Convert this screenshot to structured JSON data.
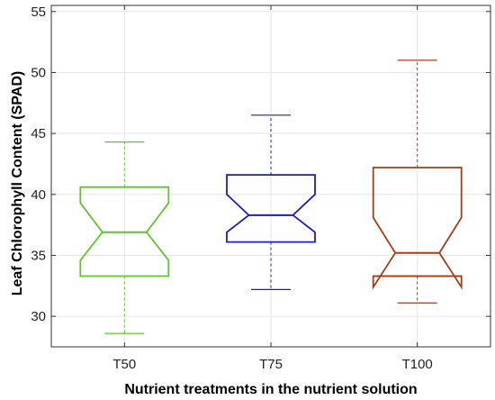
{
  "chart_data": {
    "type": "box",
    "title": "",
    "xlabel": "Nutrient treatments in the nutrient solution",
    "ylabel": "Leaf Chlorophyll Content (SPAD)",
    "ylim": [
      27.5,
      55.5
    ],
    "yticks": [
      30,
      35,
      40,
      45,
      50,
      55
    ],
    "grid": true,
    "categories": [
      "T50",
      "T75",
      "T100"
    ],
    "boxes": [
      {
        "category": "T50",
        "whisker_low": 28.6,
        "q1": 33.3,
        "median": 36.9,
        "q3": 40.6,
        "whisker_high": 44.3,
        "notch_low": 34.6,
        "notch_high": 39.3,
        "color": "#5ec62b"
      },
      {
        "category": "T75",
        "whisker_low": 32.2,
        "q1": 36.1,
        "median": 38.3,
        "q3": 41.6,
        "whisker_high": 46.5,
        "notch_low": 36.9,
        "notch_high": 40.0,
        "color": "#1f1fb4"
      },
      {
        "category": "T100",
        "whisker_low": 31.1,
        "q1": 33.3,
        "median": 35.2,
        "q3": 42.2,
        "whisker_high": 51.0,
        "notch_low": 32.4,
        "notch_high": 38.1,
        "color": "#a0401a"
      }
    ],
    "extra_lines": [
      {
        "category": "T100",
        "value": 33.3,
        "color": "#a0401a"
      }
    ]
  }
}
